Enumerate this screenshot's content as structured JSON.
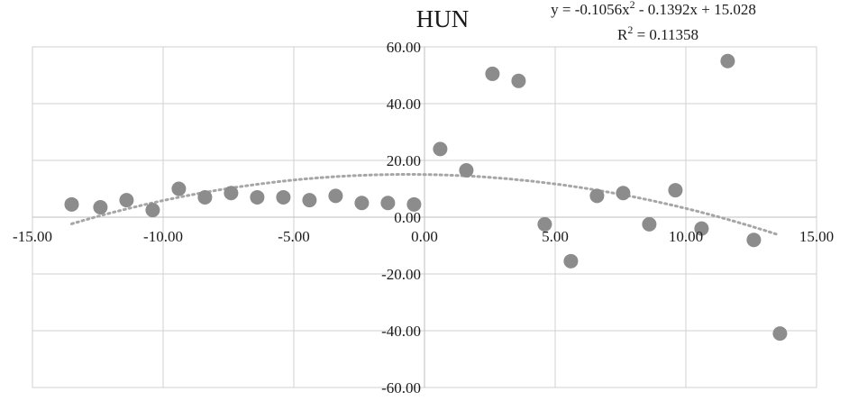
{
  "chart_data": {
    "type": "scatter",
    "title": "HUN",
    "xlabel": "",
    "ylabel": "",
    "xlim": [
      -15,
      15
    ],
    "ylim": [
      -60,
      60
    ],
    "grid": true,
    "x_ticks": [
      "-15.00",
      "-10.00",
      "-5.00",
      "0.00",
      "5.00",
      "10.00",
      "15.00"
    ],
    "y_ticks": [
      "60.00",
      "40.00",
      "20.00",
      "0.00",
      "-20.00",
      "-40.00",
      "-60.00"
    ],
    "trendline": {
      "type": "polynomial",
      "equation": "y = -0.1056x² - 0.1392x + 15.028",
      "r_squared": "R² = 0.11358",
      "coefficients": [
        -0.1056,
        -0.1392,
        15.028
      ],
      "x_range": [
        -13.5,
        13.5
      ],
      "style": "dotted"
    },
    "colors": {
      "points": "#8c8c8c",
      "trendline": "#a6a6a6",
      "grid": "#d0d0d0"
    },
    "points": [
      {
        "x": -13.5,
        "y": 4.5
      },
      {
        "x": -12.4,
        "y": 3.5
      },
      {
        "x": -11.4,
        "y": 6.0
      },
      {
        "x": -10.4,
        "y": 2.5
      },
      {
        "x": -9.4,
        "y": 10.0
      },
      {
        "x": -8.4,
        "y": 7.0
      },
      {
        "x": -7.4,
        "y": 8.5
      },
      {
        "x": -6.4,
        "y": 7.0
      },
      {
        "x": -5.4,
        "y": 7.0
      },
      {
        "x": -4.4,
        "y": 6.0
      },
      {
        "x": -3.4,
        "y": 7.5
      },
      {
        "x": -2.4,
        "y": 5.0
      },
      {
        "x": -1.4,
        "y": 5.0
      },
      {
        "x": -0.4,
        "y": 4.5
      },
      {
        "x": 0.6,
        "y": 24.0
      },
      {
        "x": 1.6,
        "y": 16.5
      },
      {
        "x": 2.6,
        "y": 50.5
      },
      {
        "x": 3.6,
        "y": 48.0
      },
      {
        "x": 4.6,
        "y": -2.5
      },
      {
        "x": 5.6,
        "y": -15.5
      },
      {
        "x": 6.6,
        "y": 7.5
      },
      {
        "x": 7.6,
        "y": 8.5
      },
      {
        "x": 8.6,
        "y": -2.5
      },
      {
        "x": 9.6,
        "y": 9.5
      },
      {
        "x": 10.6,
        "y": -4.0
      },
      {
        "x": 11.6,
        "y": 55.0
      },
      {
        "x": 12.6,
        "y": -8.0
      },
      {
        "x": 13.6,
        "y": -41.0
      }
    ]
  }
}
